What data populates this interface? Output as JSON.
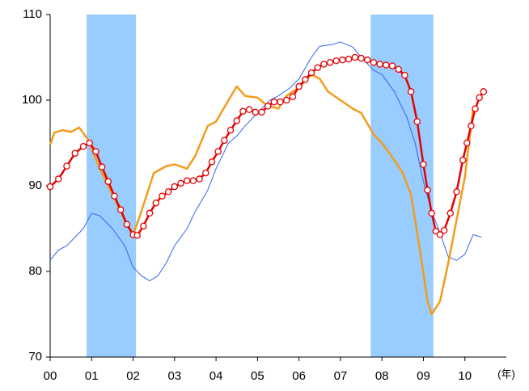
{
  "chart_data": {
    "type": "line",
    "x_unit_label": "(年)",
    "xlim": [
      0,
      11
    ],
    "ylim": [
      70,
      110
    ],
    "xticks": [
      {
        "value": 0,
        "label": "00"
      },
      {
        "value": 1,
        "label": "01"
      },
      {
        "value": 2,
        "label": "02"
      },
      {
        "value": 3,
        "label": "03"
      },
      {
        "value": 4,
        "label": "04"
      },
      {
        "value": 5,
        "label": "05"
      },
      {
        "value": 6,
        "label": "06"
      },
      {
        "value": 7,
        "label": "07"
      },
      {
        "value": 8,
        "label": "08"
      },
      {
        "value": 9,
        "label": "09"
      },
      {
        "value": 10,
        "label": "10"
      }
    ],
    "yticks": [
      70,
      80,
      90,
      100,
      110
    ],
    "shaded_ranges": [
      [
        0.88,
        2.07
      ],
      [
        7.73,
        9.24
      ]
    ],
    "shade_color": "#99ccff",
    "series": [
      {
        "color": "#3366ee",
        "width": 1,
        "markers": false,
        "x": [
          0,
          0.2,
          0.4,
          0.6,
          0.8,
          1.0,
          1.2,
          1.5,
          1.8,
          2.0,
          2.2,
          2.4,
          2.6,
          2.8,
          3.0,
          3.3,
          3.5,
          3.8,
          4.0,
          4.3,
          4.5,
          4.7,
          5.0,
          5.3,
          5.5,
          5.8,
          6.0,
          6.3,
          6.5,
          6.8,
          7.0,
          7.3,
          7.5,
          7.8,
          8.0,
          8.3,
          8.6,
          8.8,
          9.0,
          9.2,
          9.4,
          9.6,
          9.8,
          10.0,
          10.2,
          10.4
        ],
        "values": [
          81.3,
          82.5,
          83,
          84,
          85,
          86.8,
          86.5,
          85,
          83,
          80.5,
          79.5,
          78.9,
          79.5,
          81,
          83,
          85,
          87,
          89.5,
          92,
          95,
          95.8,
          97,
          98.5,
          100,
          100.5,
          101.5,
          102.5,
          105,
          106.3,
          106.5,
          106.8,
          106.2,
          105,
          103.5,
          103,
          101,
          98,
          95,
          90.5,
          87,
          84.5,
          81.7,
          81.3,
          82,
          84.3,
          84.0
        ]
      },
      {
        "color": "#f39c1a",
        "width": 2.5,
        "markers": false,
        "x": [
          0,
          0.1,
          0.3,
          0.5,
          0.7,
          0.9,
          1.2,
          1.5,
          1.8,
          2.0,
          2.2,
          2.5,
          2.8,
          3.0,
          3.3,
          3.5,
          3.8,
          4.0,
          4.3,
          4.5,
          4.7,
          5.0,
          5.2,
          5.5,
          5.7,
          6.0,
          6.3,
          6.5,
          6.7,
          7.0,
          7.3,
          7.5,
          7.8,
          8.0,
          8.3,
          8.5,
          8.7,
          8.9,
          9.1,
          9.2,
          9.4,
          9.6,
          9.8,
          10.0,
          10.2
        ],
        "values": [
          94.8,
          96.2,
          96.5,
          96.3,
          96.8,
          95.5,
          92,
          89,
          86,
          84.3,
          87,
          91.5,
          92.3,
          92.5,
          92.0,
          93.5,
          97,
          97.5,
          100,
          101.6,
          100.5,
          100.3,
          99.5,
          99,
          100.5,
          101.5,
          103,
          102.5,
          101,
          100,
          99,
          98.5,
          96,
          95,
          93,
          91.5,
          89,
          83,
          76.5,
          75,
          76.5,
          81,
          86,
          91,
          99
        ]
      },
      {
        "color": "#e60000",
        "width": 2.5,
        "markers": true,
        "x": [
          0,
          0.2,
          0.4,
          0.6,
          0.8,
          0.95,
          1.1,
          1.25,
          1.4,
          1.55,
          1.7,
          1.85,
          2.0,
          2.1,
          2.25,
          2.4,
          2.55,
          2.7,
          2.85,
          3.0,
          3.15,
          3.3,
          3.45,
          3.6,
          3.75,
          3.9,
          4.05,
          4.2,
          4.35,
          4.5,
          4.65,
          4.8,
          4.95,
          5.1,
          5.25,
          5.4,
          5.55,
          5.7,
          5.85,
          6.0,
          6.15,
          6.3,
          6.45,
          6.6,
          6.75,
          6.9,
          7.05,
          7.2,
          7.35,
          7.5,
          7.65,
          7.8,
          7.95,
          8.1,
          8.25,
          8.4,
          8.55,
          8.7,
          8.85,
          9.0,
          9.1,
          9.2,
          9.3,
          9.4,
          9.5,
          9.65,
          9.8,
          9.95,
          10.05,
          10.15,
          10.25,
          10.35,
          10.45
        ],
        "values": [
          89.9,
          90.8,
          92.3,
          93.8,
          94.6,
          95.0,
          94.0,
          92.2,
          90.5,
          88.8,
          87.2,
          85.5,
          84.3,
          84.2,
          85.3,
          86.8,
          88.0,
          88.8,
          89.3,
          89.9,
          90.3,
          90.6,
          90.6,
          90.8,
          91.5,
          92.8,
          94.0,
          95.3,
          96.5,
          97.6,
          98.7,
          98.9,
          98.6,
          98.6,
          99.3,
          99.8,
          99.8,
          100.0,
          100.4,
          101.6,
          102.4,
          103.2,
          103.8,
          104.2,
          104.4,
          104.6,
          104.7,
          104.8,
          105.0,
          104.9,
          104.7,
          104.4,
          104.2,
          104.1,
          104.0,
          103.6,
          102.9,
          101.0,
          97.5,
          92.5,
          89.5,
          86.8,
          84.7,
          84.3,
          84.8,
          86.8,
          89.3,
          93.0,
          95.0,
          97.0,
          99.0,
          100.3,
          101.0
        ]
      }
    ]
  }
}
